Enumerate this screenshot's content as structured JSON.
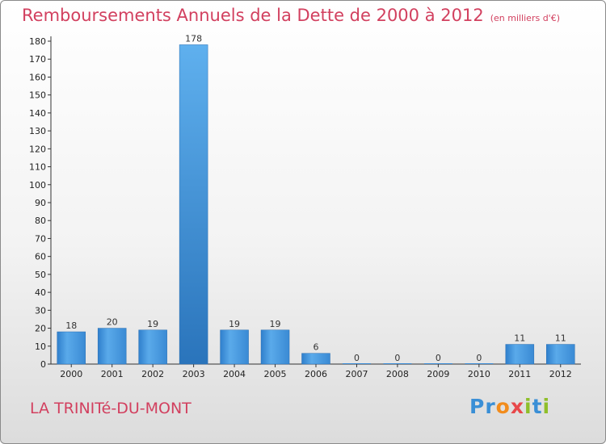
{
  "chart_data": {
    "type": "bar",
    "title": "Remboursements Annuels de la Dette de 2000 à 2012",
    "subtitle": "(en milliers d'€)",
    "categories": [
      "2000",
      "2001",
      "2002",
      "2003",
      "2004",
      "2005",
      "2006",
      "2007",
      "2008",
      "2009",
      "2010",
      "2011",
      "2012"
    ],
    "values": [
      18,
      20,
      19,
      178,
      19,
      19,
      6,
      0,
      0,
      0,
      0,
      11,
      11
    ],
    "ylim": [
      0,
      180
    ],
    "yticks": [
      0,
      10,
      20,
      30,
      40,
      50,
      60,
      70,
      80,
      90,
      100,
      110,
      120,
      130,
      140,
      150,
      160,
      170,
      180
    ],
    "xlabel": "",
    "ylabel": "",
    "grid": false,
    "bar_color": "#3f92d8",
    "highlight_color": "#2f78bf"
  },
  "footer": {
    "city": "LA TRINITé-DU-MONT",
    "logo_letters": [
      "P",
      "r",
      "o",
      "x",
      "i",
      "t",
      "i"
    ],
    "logo_colors": [
      "#3a8fd6",
      "#3a8fd6",
      "#f28c1c",
      "#e8484a",
      "#8fbf2a",
      "#3a8fd6",
      "#8fbf2a"
    ]
  },
  "colors": {
    "title": "#d2405f",
    "axis": "#333333"
  }
}
